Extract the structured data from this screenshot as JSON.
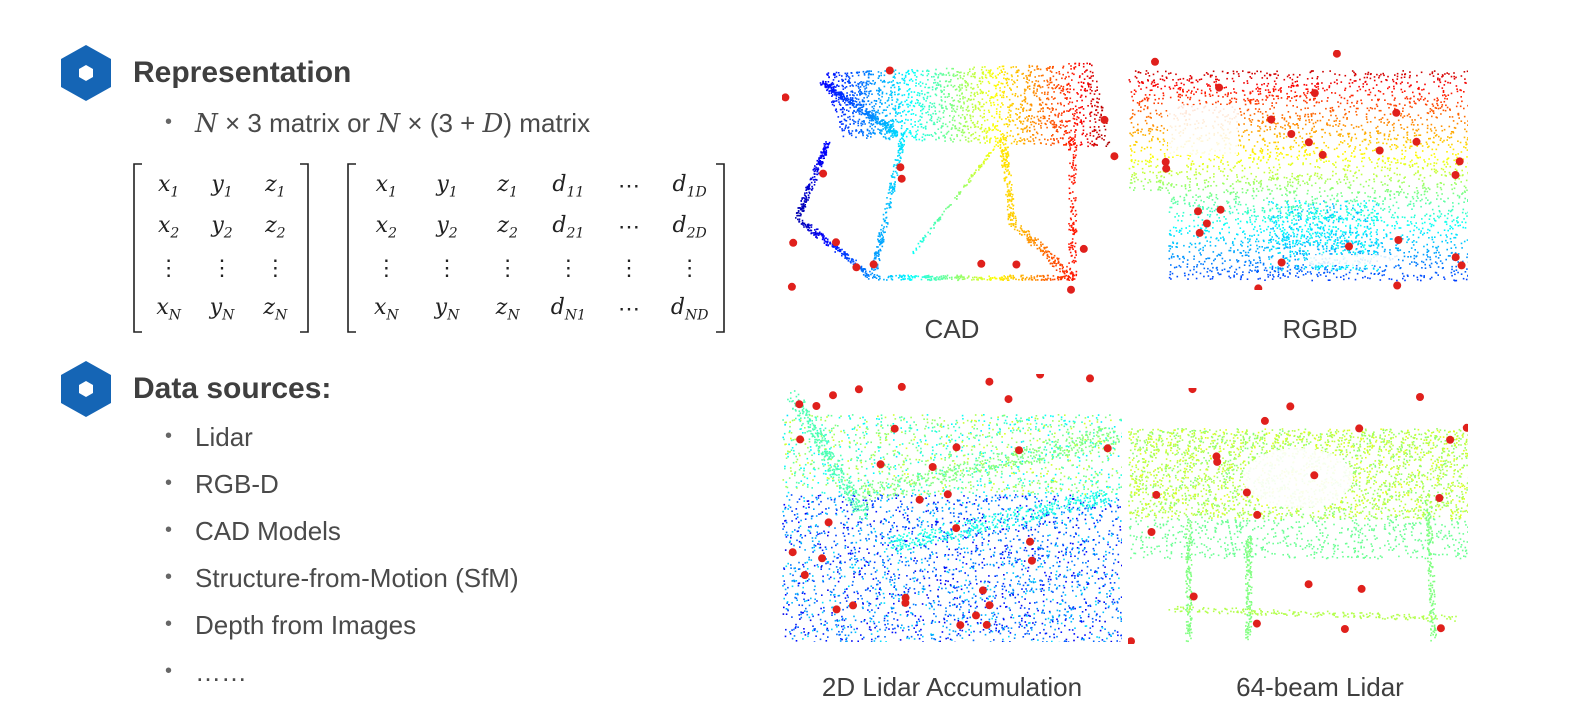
{
  "sections": {
    "representation": {
      "heading": "Representation",
      "bullet_pre": "N",
      "bullet_op1": " × 3 matrix or ",
      "bullet_n2": "N",
      "bullet_op2": " × (3 + ",
      "bullet_d": "D",
      "bullet_post": ") matrix"
    },
    "data_sources": {
      "heading": "Data sources:",
      "items": [
        "Lidar",
        "RGB-D",
        "CAD Models",
        "Structure-from-Motion (SfM)",
        "Depth from Images",
        "……"
      ]
    }
  },
  "matrix_left": {
    "cells": [
      [
        "x",
        "1"
      ],
      [
        "y",
        "1"
      ],
      [
        "z",
        "1"
      ],
      [
        "x",
        "2"
      ],
      [
        "y",
        "2"
      ],
      [
        "z",
        "2"
      ],
      [
        "⋮",
        ""
      ],
      [
        "⋮",
        ""
      ],
      [
        "⋮",
        ""
      ],
      [
        "x",
        "N"
      ],
      [
        "y",
        "N"
      ],
      [
        "z",
        "N"
      ]
    ]
  },
  "matrix_right": {
    "cells": [
      [
        "x",
        "1"
      ],
      [
        "y",
        "1"
      ],
      [
        "z",
        "1"
      ],
      [
        "d",
        "11"
      ],
      [
        "⋯",
        ""
      ],
      [
        "d",
        "1D"
      ],
      [
        "x",
        "2"
      ],
      [
        "y",
        "2"
      ],
      [
        "z",
        "2"
      ],
      [
        "d",
        "21"
      ],
      [
        "⋯",
        ""
      ],
      [
        "d",
        "2D"
      ],
      [
        "⋮",
        ""
      ],
      [
        "⋮",
        ""
      ],
      [
        "⋮",
        ""
      ],
      [
        "⋮",
        ""
      ],
      [
        "⋮",
        ""
      ],
      [
        "⋮",
        ""
      ],
      [
        "x",
        "N"
      ],
      [
        "y",
        "N"
      ],
      [
        "z",
        "N"
      ],
      [
        "d",
        "N1"
      ],
      [
        "⋯",
        ""
      ],
      [
        "d",
        "ND"
      ]
    ]
  },
  "figures": {
    "cad": "CAD",
    "rgbd": "RGBD",
    "lidar2d": "2D Lidar Accumulation",
    "lidar64": "64-beam Lidar"
  },
  "colors": {
    "accent_hex": "#1565b5",
    "keypoint": "#e0201c"
  },
  "icons": {
    "section_icon": "hexagon-icon"
  }
}
